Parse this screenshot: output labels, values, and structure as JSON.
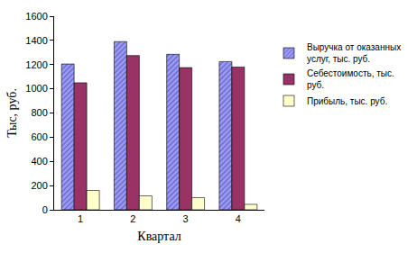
{
  "chart_data": {
    "type": "bar",
    "x_label": "Квартал",
    "y_label": "Тыс, руб.",
    "categories": [
      "1",
      "2",
      "3",
      "4"
    ],
    "series": [
      {
        "name": "Выручка от оказанных услуг, тыс. руб.",
        "color": "#9999ff",
        "values": [
          1205,
          1390,
          1285,
          1225
        ]
      },
      {
        "name": "Себестоимость, тыс. руб.",
        "color": "#993366",
        "values": [
          1050,
          1275,
          1175,
          1180
        ]
      },
      {
        "name": "Прибыль, тыс. руб.",
        "color": "#ffffcc",
        "values": [
          160,
          115,
          100,
          45
        ]
      }
    ],
    "ylim": [
      0,
      1600
    ],
    "yticks": [
      0,
      200,
      400,
      600,
      800,
      1000,
      1200,
      1400,
      1600
    ],
    "grid": false,
    "legend": "right"
  }
}
